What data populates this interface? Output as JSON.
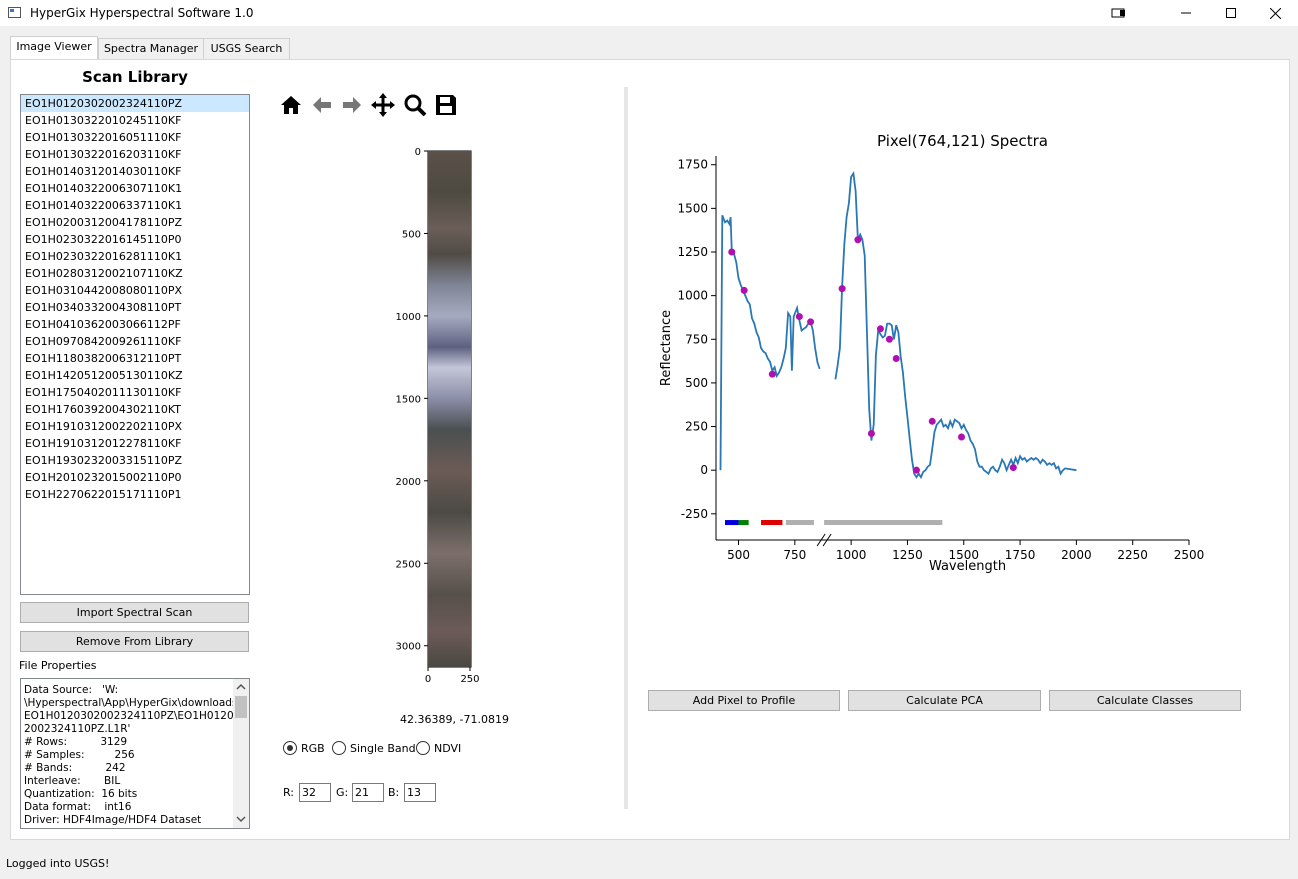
{
  "window": {
    "title": "HyperGix Hyperspectral Software 1.0",
    "controls": [
      "restore",
      "minimize",
      "maximize",
      "close"
    ]
  },
  "tabs": [
    {
      "label": "Image Viewer",
      "active": true
    },
    {
      "label": "Spectra Manager",
      "active": false
    },
    {
      "label": "USGS Search",
      "active": false
    }
  ],
  "library": {
    "title": "Scan Library",
    "selected_index": 0,
    "items": [
      "EO1H0120302002324110PZ",
      "EO1H0130322010245110KF",
      "EO1H0130322016051110KF",
      "EO1H0130322016203110KF",
      "EO1H0140312014030110KF",
      "EO1H0140322006307110K1",
      "EO1H0140322006337110K1",
      "EO1H0200312004178110PZ",
      "EO1H0230322016145110P0",
      "EO1H0230322016281110K1",
      "EO1H0280312002107110KZ",
      "EO1H0310442008080110PX",
      "EO1H0340332004308110PT",
      "EO1H0410362003066112PF",
      "EO1H0970842009261110KF",
      "EO1H1180382006312110PT",
      "EO1H1420512005130110KZ",
      "EO1H1750402011130110KF",
      "EO1H1760392004302110KT",
      "EO1H1910312002202110PX",
      "EO1H1910312012278110KF",
      "EO1H1930232003315110PZ",
      "EO1H2010232015002110P0",
      "EO1H2270622015171110P1"
    ],
    "import_label": "Import Spectral Scan",
    "remove_label": "Remove From Library"
  },
  "file_properties": {
    "label": "File Properties",
    "text": "Data Source:   'W:\n\\Hyperspectral\\App\\HyperGix\\downloads\\\nEO1H0120302002324110PZ\\EO1H012030\n2002324110PZ.L1R'\n# Rows:          3129\n# Samples:         256\n# Bands:          242\nInterleave:       BIL\nQuantization:  16 bits\nData format:    int16\nDriver: HDF4Image/HDF4 Dataset"
  },
  "toolbar": {
    "icons": [
      "home-icon",
      "back-arrow-icon",
      "forward-arrow-icon",
      "pan-icon",
      "zoom-icon",
      "save-icon"
    ]
  },
  "image_view": {
    "y_ticks": [
      "0",
      "500",
      "1000",
      "1500",
      "2000",
      "2500",
      "3000"
    ],
    "x_ticks": [
      "0",
      "250"
    ],
    "coordinates": "42.36389, -71.0819"
  },
  "display_mode": {
    "options": [
      "RGB",
      "Single Band",
      "NDVI"
    ],
    "selected": "RGB"
  },
  "bands": {
    "r_label": "R:",
    "g_label": "G:",
    "b_label": "B:",
    "r": "32",
    "g": "21",
    "b": "13"
  },
  "chart_data": {
    "type": "line",
    "title": "Pixel(764,121) Spectra",
    "xlabel": "Wavelength",
    "ylabel": "Reflectance",
    "xlim": [
      400,
      2500
    ],
    "ylim": [
      -400,
      1800
    ],
    "xticks": [
      500,
      750,
      1000,
      1250,
      1500,
      1750,
      2000,
      2250,
      2500
    ],
    "yticks": [
      -250,
      0,
      250,
      500,
      750,
      1000,
      1250,
      1500,
      1750
    ],
    "line_color": "#2878b4",
    "series": [
      {
        "segments": [
          [
            [
              420,
              0
            ],
            [
              428,
              1460
            ],
            [
              440,
              1420
            ],
            [
              450,
              1430
            ],
            [
              460,
              1410
            ],
            [
              465,
              1450
            ],
            [
              470,
              1250
            ],
            [
              480,
              1240
            ],
            [
              490,
              1190
            ],
            [
              500,
              1100
            ],
            [
              510,
              1060
            ],
            [
              520,
              1030
            ],
            [
              530,
              1000
            ],
            [
              540,
              970
            ],
            [
              550,
              950
            ],
            [
              560,
              870
            ],
            [
              570,
              840
            ],
            [
              580,
              790
            ],
            [
              590,
              760
            ],
            [
              600,
              700
            ],
            [
              610,
              680
            ],
            [
              620,
              670
            ],
            [
              630,
              640
            ],
            [
              640,
              620
            ],
            [
              650,
              570
            ],
            [
              660,
              590
            ],
            [
              670,
              540
            ],
            [
              680,
              560
            ],
            [
              690,
              590
            ],
            [
              700,
              640
            ],
            [
              710,
              700
            ],
            [
              720,
              900
            ],
            [
              730,
              880
            ],
            [
              737,
              570
            ],
            [
              745,
              880
            ],
            [
              760,
              930
            ],
            [
              770,
              860
            ],
            [
              780,
              800
            ],
            [
              790,
              810
            ],
            [
              800,
              820
            ],
            [
              810,
              840
            ],
            [
              820,
              850
            ],
            [
              830,
              800
            ],
            [
              840,
              700
            ],
            [
              850,
              620
            ],
            [
              860,
              580
            ]
          ],
          [
            [
              930,
              520
            ],
            [
              940,
              600
            ],
            [
              950,
              700
            ],
            [
              960,
              1050
            ],
            [
              970,
              1300
            ],
            [
              980,
              1450
            ],
            [
              990,
              1530
            ],
            [
              1000,
              1680
            ],
            [
              1010,
              1700
            ],
            [
              1020,
              1600
            ],
            [
              1030,
              1320
            ],
            [
              1040,
              1350
            ],
            [
              1050,
              1320
            ],
            [
              1060,
              1230
            ],
            [
              1070,
              800
            ],
            [
              1080,
              350
            ],
            [
              1090,
              170
            ],
            [
              1100,
              260
            ],
            [
              1110,
              660
            ],
            [
              1120,
              800
            ],
            [
              1130,
              780
            ],
            [
              1140,
              760
            ],
            [
              1150,
              770
            ],
            [
              1160,
              840
            ],
            [
              1170,
              840
            ],
            [
              1180,
              830
            ],
            [
              1190,
              750
            ],
            [
              1200,
              830
            ],
            [
              1210,
              790
            ],
            [
              1220,
              650
            ],
            [
              1230,
              560
            ],
            [
              1240,
              420
            ],
            [
              1250,
              300
            ],
            [
              1260,
              180
            ],
            [
              1270,
              60
            ],
            [
              1280,
              -20
            ],
            [
              1290,
              -40
            ],
            [
              1300,
              -20
            ],
            [
              1310,
              -40
            ],
            [
              1320,
              -10
            ],
            [
              1330,
              0
            ],
            [
              1340,
              20
            ],
            [
              1350,
              30
            ],
            [
              1360,
              120
            ],
            [
              1370,
              220
            ],
            [
              1380,
              260
            ],
            [
              1400,
              290
            ],
            [
              1410,
              250
            ],
            [
              1420,
              260
            ],
            [
              1430,
              240
            ],
            [
              1440,
              280
            ],
            [
              1450,
              250
            ],
            [
              1460,
              290
            ],
            [
              1470,
              280
            ],
            [
              1480,
              270
            ],
            [
              1490,
              240
            ],
            [
              1500,
              260
            ],
            [
              1510,
              230
            ],
            [
              1520,
              210
            ],
            [
              1530,
              170
            ],
            [
              1540,
              150
            ],
            [
              1550,
              120
            ],
            [
              1560,
              50
            ],
            [
              1570,
              20
            ],
            [
              1580,
              20
            ],
            [
              1590,
              0
            ],
            [
              1600,
              -10
            ],
            [
              1610,
              -20
            ],
            [
              1620,
              10
            ],
            [
              1630,
              20
            ],
            [
              1640,
              0
            ],
            [
              1650,
              -10
            ],
            [
              1660,
              20
            ],
            [
              1670,
              60
            ],
            [
              1680,
              40
            ],
            [
              1690,
              0
            ],
            [
              1700,
              30
            ],
            [
              1710,
              60
            ],
            [
              1720,
              30
            ],
            [
              1730,
              70
            ],
            [
              1740,
              40
            ],
            [
              1750,
              80
            ],
            [
              1760,
              60
            ],
            [
              1770,
              70
            ],
            [
              1780,
              50
            ],
            [
              1790,
              60
            ],
            [
              1800,
              70
            ],
            [
              1810,
              60
            ],
            [
              1820,
              70
            ],
            [
              1830,
              60
            ],
            [
              1840,
              40
            ],
            [
              1850,
              60
            ],
            [
              1860,
              50
            ],
            [
              1870,
              30
            ],
            [
              1880,
              40
            ],
            [
              1890,
              30
            ],
            [
              1900,
              40
            ],
            [
              1910,
              10
            ],
            [
              1920,
              20
            ],
            [
              1930,
              -20
            ],
            [
              1940,
              0
            ],
            [
              1950,
              10
            ],
            [
              2000,
              0
            ]
          ]
        ]
      }
    ],
    "sample_points": [
      [
        470,
        1250
      ],
      [
        525,
        1030
      ],
      [
        650,
        550
      ],
      [
        770,
        880
      ],
      [
        820,
        850
      ],
      [
        960,
        1040
      ],
      [
        1030,
        1320
      ],
      [
        1090,
        210
      ],
      [
        1130,
        810
      ],
      [
        1170,
        750
      ],
      [
        1200,
        640
      ],
      [
        1290,
        0
      ],
      [
        1360,
        280
      ],
      [
        1490,
        190
      ],
      [
        1720,
        15
      ]
    ],
    "sample_color": "#b010b0",
    "band_bars": [
      {
        "color": "#0000dd",
        "from": 440,
        "to": 500
      },
      {
        "color": "#008000",
        "from": 500,
        "to": 545
      },
      {
        "color": "#dd0000",
        "from": 600,
        "to": 695
      },
      {
        "color": "#b0b0b0",
        "from": 710,
        "to": 835
      },
      {
        "color": "#b0b0b0",
        "from": 880,
        "to": 1405
      }
    ]
  },
  "actions": {
    "add_pixel_label": "Add Pixel to Profile",
    "pca_label": "Calculate PCA",
    "classes_label": "Calculate Classes"
  },
  "status": "Logged into USGS!"
}
